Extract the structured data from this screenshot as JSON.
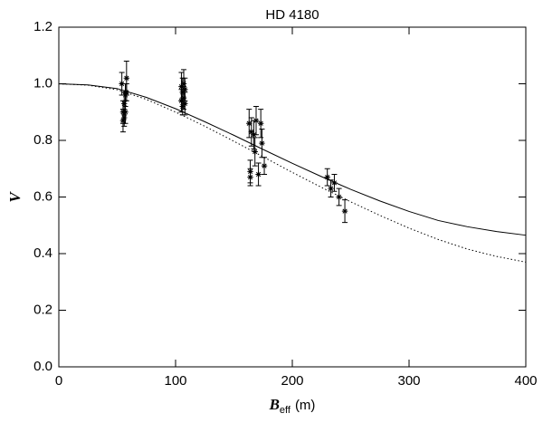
{
  "chart_data": {
    "type": "errorbar-scatter",
    "title": "HD 4180",
    "xlabel": {
      "symbol": "B",
      "subscript": "eff",
      "unit": "(m)"
    },
    "ylabel": "V",
    "xlim": [
      0,
      400
    ],
    "ylim": [
      0,
      1.2
    ],
    "xticks": [
      0,
      100,
      200,
      300,
      400
    ],
    "yticks": [
      {
        "value": 0,
        "label": "0.0"
      },
      0.2,
      0.4,
      0.6,
      0.8,
      {
        "value": 1,
        "label": "1.0"
      },
      1.2
    ],
    "series": [
      {
        "type": "errorbar",
        "color": "#000000",
        "x": [
          54,
          55,
          55,
          56,
          56,
          57,
          57,
          57,
          58,
          58,
          105,
          105,
          106,
          106,
          107,
          107,
          108,
          108,
          163,
          164,
          164,
          165,
          167,
          168,
          169,
          171,
          173,
          174,
          176,
          230,
          233,
          236,
          240,
          245
        ],
        "values": [
          1.0,
          0.9,
          0.87,
          0.93,
          0.88,
          0.96,
          0.97,
          0.9,
          1.02,
          0.97,
          0.99,
          0.94,
          0.97,
          0.92,
          1.0,
          0.95,
          0.98,
          0.93,
          0.86,
          0.69,
          0.67,
          0.83,
          0.82,
          0.76,
          0.87,
          0.68,
          0.86,
          0.79,
          0.71,
          0.67,
          0.63,
          0.65,
          0.6,
          0.55
        ],
        "errors": [
          0.04,
          0.04,
          0.04,
          0.04,
          0.03,
          0.04,
          0.03,
          0.04,
          0.06,
          0.03,
          0.05,
          0.04,
          0.05,
          0.03,
          0.05,
          0.04,
          0.04,
          0.04,
          0.05,
          0.04,
          0.03,
          0.05,
          0.05,
          0.05,
          0.05,
          0.04,
          0.05,
          0.05,
          0.03,
          0.03,
          0.03,
          0.03,
          0.03,
          0.04
        ]
      },
      {
        "type": "line",
        "dash": "solid",
        "color": "#000000",
        "x": [
          0,
          25,
          50,
          75,
          100,
          125,
          150,
          175,
          200,
          225,
          250,
          275,
          300,
          325,
          350,
          375,
          400
        ],
        "values": [
          1.0,
          0.996,
          0.983,
          0.952,
          0.912,
          0.866,
          0.818,
          0.768,
          0.719,
          0.672,
          0.627,
          0.586,
          0.549,
          0.517,
          0.495,
          0.478,
          0.465
        ]
      },
      {
        "type": "line",
        "dash": "dotted",
        "color": "#000000",
        "x": [
          0,
          25,
          50,
          75,
          100,
          125,
          150,
          175,
          200,
          225,
          250,
          275,
          300,
          325,
          350,
          375,
          400
        ],
        "values": [
          1.0,
          0.995,
          0.979,
          0.945,
          0.9,
          0.85,
          0.797,
          0.742,
          0.687,
          0.634,
          0.583,
          0.535,
          0.49,
          0.45,
          0.416,
          0.39,
          0.37
        ]
      }
    ]
  }
}
